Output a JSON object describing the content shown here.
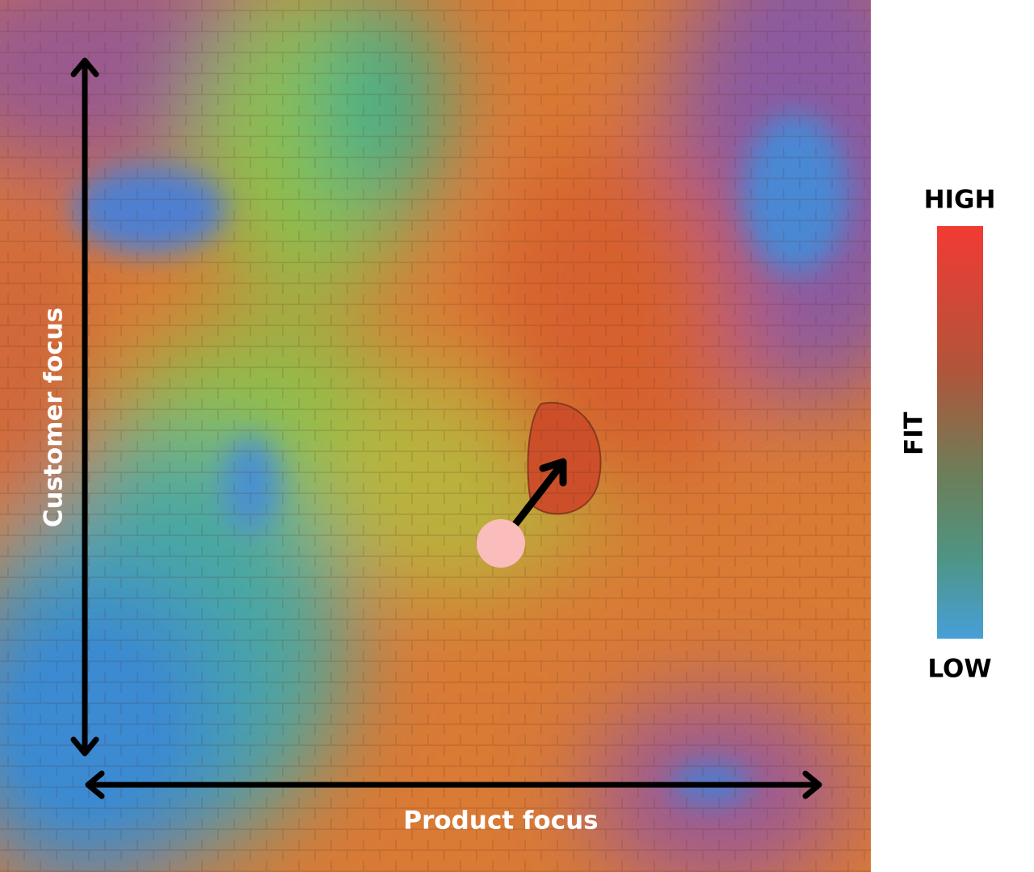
{
  "diagram": {
    "y_axis_label": "Customer focus",
    "x_axis_label": "Product focus",
    "legend": {
      "title": "FIT",
      "high": "HIGH",
      "low": "LOW"
    }
  }
}
